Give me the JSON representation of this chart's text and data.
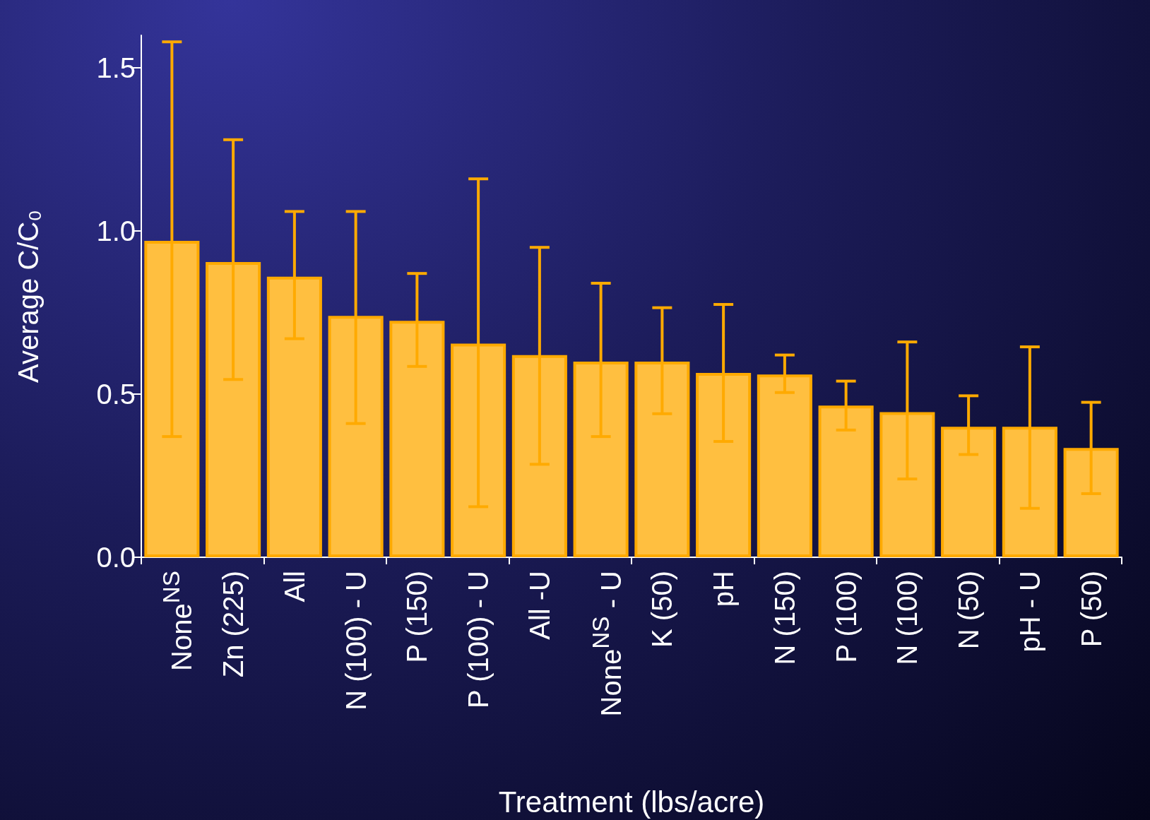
{
  "chart_data": {
    "type": "bar",
    "xlabel": "Treatment (lbs/acre)",
    "ylabel": "Average C/C₀",
    "categories": [
      "None$^{NS}$",
      "Zn (225)",
      "All",
      "N (100) - U",
      "P (150)",
      "P (100) - U",
      "All -U",
      "None$^{NS}$ - U",
      "K (50)",
      "pH",
      "N (150)",
      "P (100)",
      "N (100)",
      "N (50)",
      "pH - U",
      "P (50)"
    ],
    "values": [
      0.97,
      0.905,
      0.86,
      0.74,
      0.725,
      0.655,
      0.62,
      0.6,
      0.6,
      0.565,
      0.56,
      0.465,
      0.445,
      0.4,
      0.4,
      0.335
    ],
    "errors": [
      [
        0.37,
        1.58
      ],
      [
        0.545,
        1.28
      ],
      [
        0.67,
        1.06
      ],
      [
        0.41,
        1.06
      ],
      [
        0.585,
        0.87
      ],
      [
        0.155,
        1.16
      ],
      [
        0.285,
        0.95
      ],
      [
        0.37,
        0.84
      ],
      [
        0.44,
        0.765
      ],
      [
        0.355,
        0.775
      ],
      [
        0.505,
        0.62
      ],
      [
        0.39,
        0.54
      ],
      [
        0.24,
        0.66
      ],
      [
        0.315,
        0.495
      ],
      [
        0.15,
        0.645
      ],
      [
        0.195,
        0.475
      ]
    ],
    "color": "#ffbf40",
    "ylim": [
      0,
      1.6
    ],
    "yticks": [
      {
        "value": 0,
        "label": "0.0"
      },
      0.5,
      {
        "value": 1,
        "label": "1.0"
      },
      1.5
    ],
    "grid": false
  }
}
